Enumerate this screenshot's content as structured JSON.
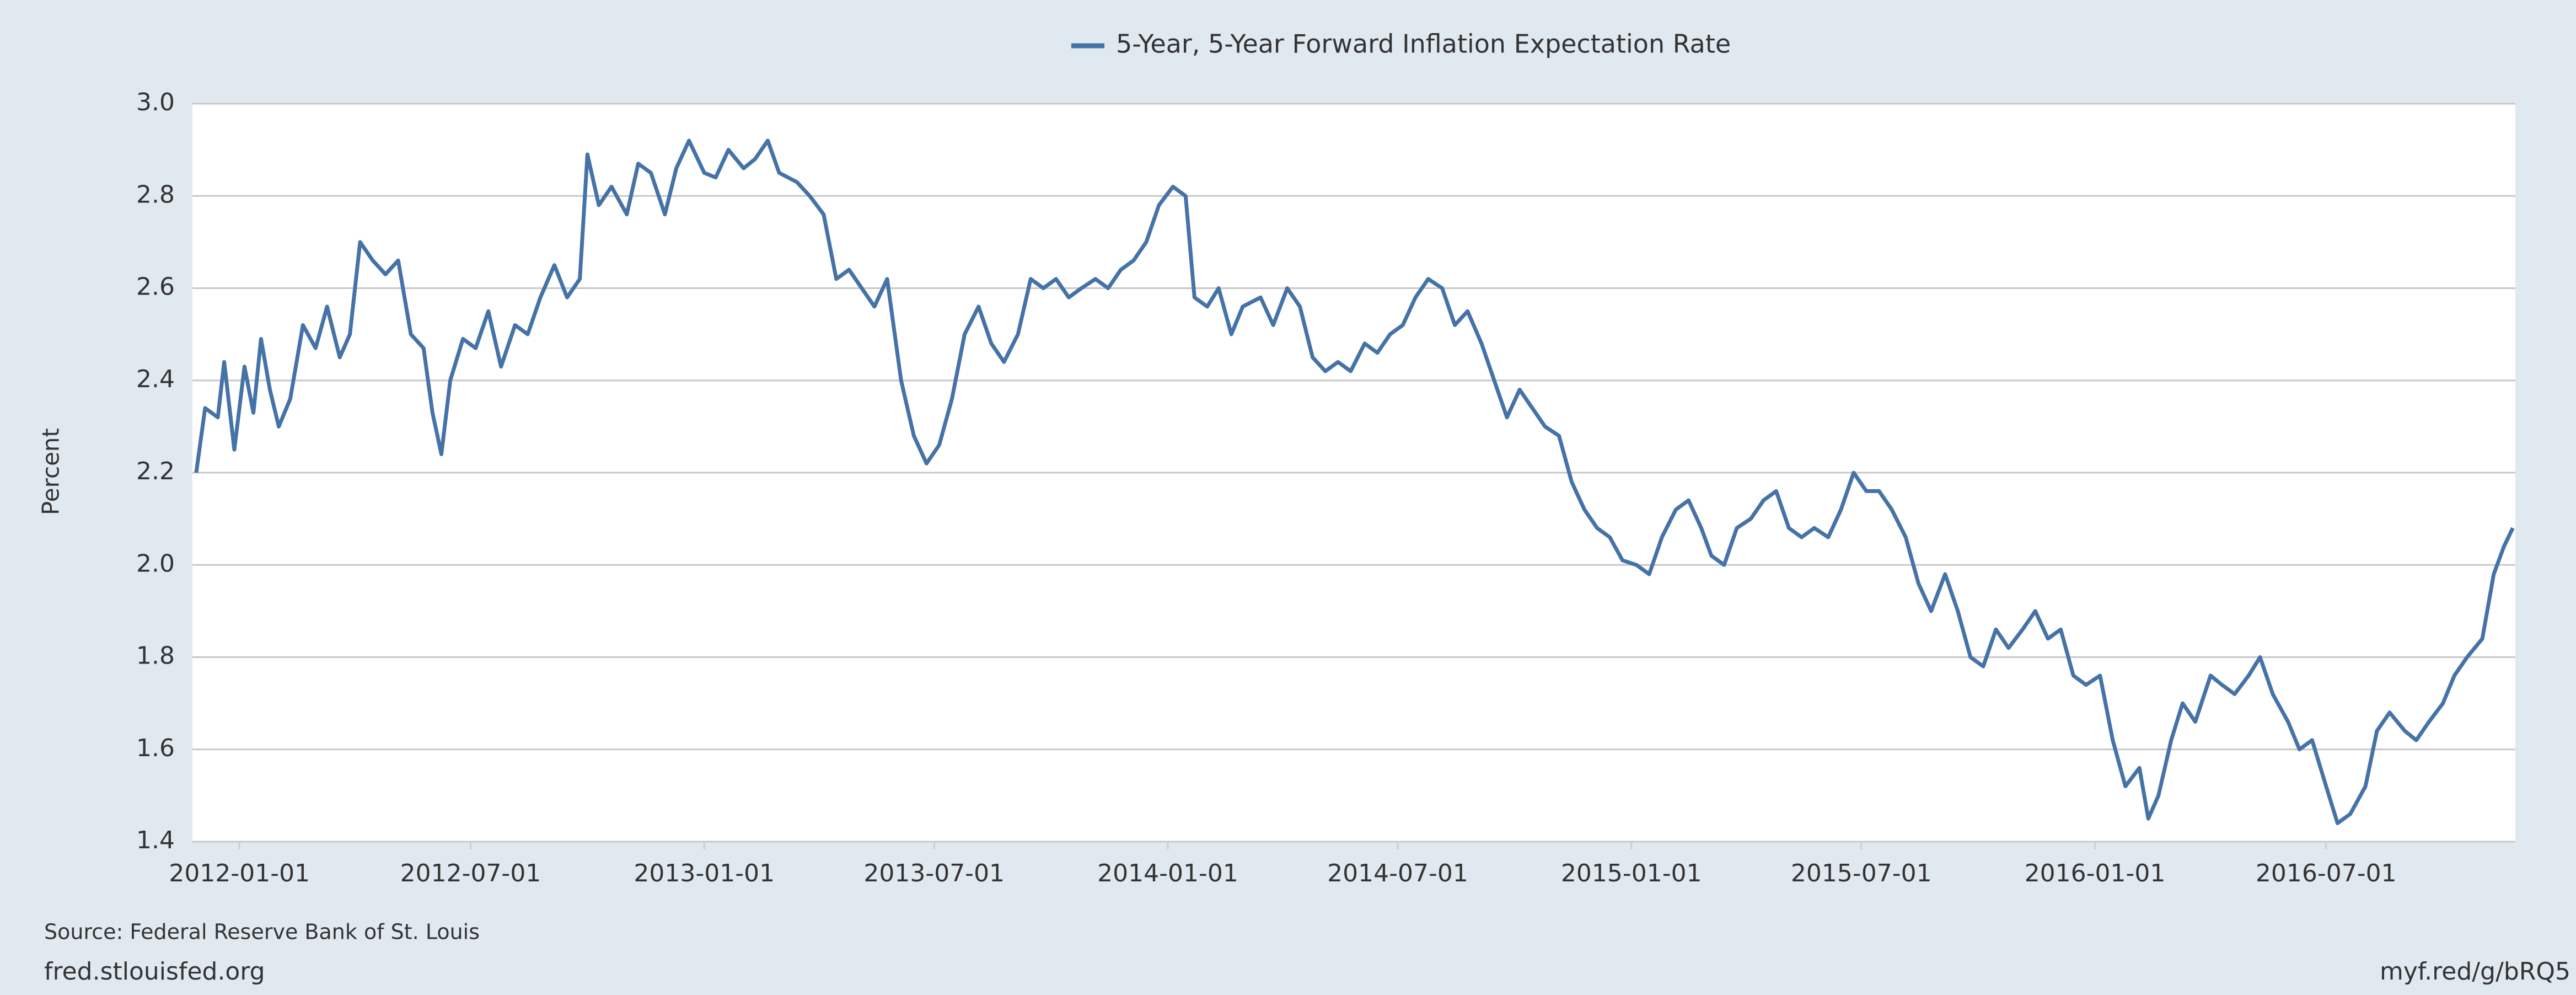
{
  "chart_data": {
    "type": "line",
    "ylabel": "Percent",
    "series": [
      {
        "name": "5-Year, 5-Year Forward Inflation Expectation Rate",
        "color": "#4572a7",
        "values": [
          2.2,
          2.34,
          2.32,
          2.44,
          2.25,
          2.43,
          2.33,
          2.49,
          2.38,
          2.3,
          2.36,
          2.52,
          2.47,
          2.56,
          2.45,
          2.5,
          2.7,
          2.66,
          2.63,
          2.66,
          2.5,
          2.47,
          2.33,
          2.24,
          2.4,
          2.49,
          2.47,
          2.55,
          2.43,
          2.52,
          2.5,
          2.58,
          2.65,
          2.58,
          2.62,
          2.89,
          2.78,
          2.82,
          2.76,
          2.87,
          2.85,
          2.76,
          2.86,
          2.92,
          2.85,
          2.84,
          2.9,
          2.86,
          2.88,
          2.92,
          2.85,
          2.83,
          2.8,
          2.76,
          2.62,
          2.64,
          2.6,
          2.56,
          2.62,
          2.4,
          2.28,
          2.22,
          2.26,
          2.36,
          2.5,
          2.56,
          2.48,
          2.44,
          2.5,
          2.62,
          2.6,
          2.62,
          2.58,
          2.6,
          2.62,
          2.6,
          2.64,
          2.66,
          2.7,
          2.78,
          2.82,
          2.8,
          2.58,
          2.56,
          2.6,
          2.5,
          2.56,
          2.58,
          2.52,
          2.6,
          2.56,
          2.45,
          2.42,
          2.44,
          2.42,
          2.48,
          2.46,
          2.5,
          2.52,
          2.58,
          2.62,
          2.6,
          2.52,
          2.55,
          2.48,
          2.4,
          2.32,
          2.38,
          2.34,
          2.3,
          2.28,
          2.18,
          2.12,
          2.08,
          2.06,
          2.01,
          2.0,
          1.98,
          2.06,
          2.12,
          2.14,
          2.08,
          2.02,
          2.0,
          2.08,
          2.1,
          2.14,
          2.16,
          2.08,
          2.06,
          2.08,
          2.06,
          2.12,
          2.2,
          2.16,
          2.16,
          2.12,
          2.06,
          1.96,
          1.9,
          1.98,
          1.9,
          1.8,
          1.78,
          1.86,
          1.82,
          1.86,
          1.9,
          1.84,
          1.86,
          1.76,
          1.74,
          1.76,
          1.62,
          1.52,
          1.56,
          1.45,
          1.5,
          1.62,
          1.7,
          1.66,
          1.76,
          1.74,
          1.72,
          1.76,
          1.8,
          1.72,
          1.66,
          1.6,
          1.62,
          1.52,
          1.44,
          1.46,
          1.52,
          1.64,
          1.68,
          1.64,
          1.62,
          1.66,
          1.7,
          1.76,
          1.8,
          1.84,
          1.98,
          2.04,
          2.08
        ]
      }
    ],
    "x": [
      "2011-11-28",
      "2011-12-05",
      "2011-12-15",
      "2011-12-20",
      "2011-12-28",
      "2012-01-05",
      "2012-01-12",
      "2012-01-18",
      "2012-01-25",
      "2012-02-01",
      "2012-02-10",
      "2012-02-20",
      "2012-03-01",
      "2012-03-10",
      "2012-03-20",
      "2012-03-28",
      "2012-04-05",
      "2012-04-15",
      "2012-04-25",
      "2012-05-05",
      "2012-05-15",
      "2012-05-25",
      "2012-06-01",
      "2012-06-08",
      "2012-06-15",
      "2012-06-25",
      "2012-07-05",
      "2012-07-15",
      "2012-07-25",
      "2012-08-05",
      "2012-08-15",
      "2012-08-25",
      "2012-09-05",
      "2012-09-15",
      "2012-09-25",
      "2012-10-01",
      "2012-10-10",
      "2012-10-20",
      "2012-11-01",
      "2012-11-10",
      "2012-11-20",
      "2012-12-01",
      "2012-12-10",
      "2012-12-20",
      "2013-01-01",
      "2013-01-10",
      "2013-01-20",
      "2013-02-01",
      "2013-02-10",
      "2013-02-20",
      "2013-03-01",
      "2013-03-15",
      "2013-03-25",
      "2013-04-05",
      "2013-04-15",
      "2013-04-25",
      "2013-05-05",
      "2013-05-15",
      "2013-05-25",
      "2013-06-05",
      "2013-06-15",
      "2013-06-25",
      "2013-07-05",
      "2013-07-15",
      "2013-07-25",
      "2013-08-05",
      "2013-08-15",
      "2013-08-25",
      "2013-09-05",
      "2013-09-15",
      "2013-09-25",
      "2013-10-05",
      "2013-10-15",
      "2013-10-25",
      "2013-11-05",
      "2013-11-15",
      "2013-11-25",
      "2013-12-05",
      "2013-12-15",
      "2013-12-25",
      "2014-01-05",
      "2014-01-15",
      "2014-01-22",
      "2014-02-01",
      "2014-02-10",
      "2014-02-20",
      "2014-03-01",
      "2014-03-15",
      "2014-03-25",
      "2014-04-05",
      "2014-04-15",
      "2014-04-25",
      "2014-05-05",
      "2014-05-15",
      "2014-05-25",
      "2014-06-05",
      "2014-06-15",
      "2014-06-25",
      "2014-07-05",
      "2014-07-15",
      "2014-07-25",
      "2014-08-05",
      "2014-08-15",
      "2014-08-25",
      "2014-09-05",
      "2014-09-15",
      "2014-09-25",
      "2014-10-05",
      "2014-10-15",
      "2014-10-25",
      "2014-11-05",
      "2014-11-15",
      "2014-11-25",
      "2014-12-05",
      "2014-12-15",
      "2014-12-25",
      "2015-01-05",
      "2015-01-15",
      "2015-01-25",
      "2015-02-05",
      "2015-02-15",
      "2015-02-25",
      "2015-03-05",
      "2015-03-15",
      "2015-03-25",
      "2015-04-05",
      "2015-04-15",
      "2015-04-25",
      "2015-05-05",
      "2015-05-15",
      "2015-05-25",
      "2015-06-05",
      "2015-06-15",
      "2015-06-25",
      "2015-07-05",
      "2015-07-15",
      "2015-07-25",
      "2015-08-05",
      "2015-08-15",
      "2015-08-25",
      "2015-09-05",
      "2015-09-15",
      "2015-09-25",
      "2015-10-05",
      "2015-10-15",
      "2015-10-25",
      "2015-11-05",
      "2015-11-15",
      "2015-11-25",
      "2015-12-05",
      "2015-12-15",
      "2015-12-25",
      "2016-01-05",
      "2016-01-15",
      "2016-01-25",
      "2016-02-05",
      "2016-02-12",
      "2016-02-20",
      "2016-03-01",
      "2016-03-10",
      "2016-03-20",
      "2016-04-01",
      "2016-04-10",
      "2016-04-20",
      "2016-05-01",
      "2016-05-10",
      "2016-05-20",
      "2016-06-01",
      "2016-06-10",
      "2016-06-20",
      "2016-07-01",
      "2016-07-10",
      "2016-07-20",
      "2016-08-01",
      "2016-08-10",
      "2016-08-20",
      "2016-09-01",
      "2016-09-10",
      "2016-09-20",
      "2016-10-01",
      "2016-10-10",
      "2016-10-20",
      "2016-11-01",
      "2016-11-10",
      "2016-11-18",
      "2016-11-25"
    ],
    "xlim": [
      "2011-11-25",
      "2016-11-27"
    ],
    "xticks": [
      "2012-01-01",
      "2012-07-01",
      "2013-01-01",
      "2013-07-01",
      "2014-01-01",
      "2014-07-01",
      "2015-01-01",
      "2015-07-01",
      "2016-01-01",
      "2016-07-01"
    ],
    "ylim": [
      1.4,
      3.0
    ],
    "yticks": [
      {
        "value": 1.4,
        "label": "1.4"
      },
      {
        "value": 1.6,
        "label": "1.6"
      },
      {
        "value": 1.8,
        "label": "1.8"
      },
      {
        "value": 2.0,
        "label": "2.0"
      },
      {
        "value": 2.2,
        "label": "2.2"
      },
      {
        "value": 2.4,
        "label": "2.4"
      },
      {
        "value": 2.6,
        "label": "2.6"
      },
      {
        "value": 2.8,
        "label": "2.8"
      },
      {
        "value": 3.0,
        "label": "3.0"
      }
    ],
    "grid": true,
    "source": "Source: Federal Reserve Bank of St. Louis",
    "footer_left": "fred.stlouisfed.org",
    "footer_right": "myf.red/g/bRQ5"
  }
}
